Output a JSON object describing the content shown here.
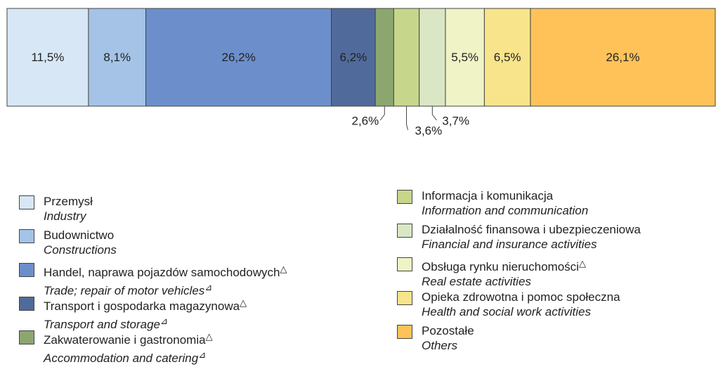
{
  "chart_data": {
    "type": "bar",
    "orientation": "horizontal",
    "stacked": true,
    "xlim": [
      0,
      100
    ],
    "series": [
      {
        "name": "Przemysł",
        "name_en": "Industry",
        "color": "#d7e7f6",
        "values": [
          11.5
        ],
        "value_labels": [
          "11,5%"
        ]
      },
      {
        "name": "Budownictwo",
        "name_en": "Constructions",
        "color": "#a4c3e7",
        "values": [
          8.1
        ],
        "value_labels": [
          "8,1%"
        ]
      },
      {
        "name": "Handel, naprawa pojazdów samochodowych",
        "name_en": "Trade; repair of motor vehicles",
        "mark": "△",
        "mark_en": "⊿",
        "color": "#6c8fcc",
        "values": [
          26.2
        ],
        "value_labels": [
          "26,2%"
        ]
      },
      {
        "name": "Transport i gospodarka magazynowa",
        "name_en": "Transport and storage",
        "mark": "△",
        "mark_en": "⊿",
        "color": "#506b9b",
        "values": [
          6.2
        ],
        "value_labels": [
          "6,2%"
        ]
      },
      {
        "name": "Zakwaterowanie i gastronomia",
        "name_en": "Accommodation and catering",
        "mark": "△",
        "mark_en": "⊿",
        "color": "#8ba76f",
        "values": [
          2.6
        ],
        "value_labels": [
          "2,6%"
        ]
      },
      {
        "name": "Informacja i komunikacja",
        "name_en": "Information and communication",
        "color": "#c6d78b",
        "values": [
          3.6
        ],
        "value_labels": [
          "3,6%"
        ]
      },
      {
        "name": "Działalność finansowa i ubezpieczeniowa",
        "name_en": "Financial and insurance activities",
        "color": "#d9e7c5",
        "values": [
          3.7
        ],
        "value_labels": [
          "3,7%"
        ]
      },
      {
        "name": "Obsługa rynku nieruchomości",
        "name_en": "Real estate activities",
        "mark": "△",
        "color": "#eff3c6",
        "values": [
          5.5
        ],
        "value_labels": [
          "5,5%"
        ]
      },
      {
        "name": "Opieka zdrowotna i pomoc społeczna",
        "name_en": "Health and social work activities",
        "color": "#f8e48b",
        "values": [
          6.5
        ],
        "value_labels": [
          "6,5%"
        ]
      },
      {
        "name": "Pozostałe",
        "name_en": "Others",
        "color": "#fec259",
        "values": [
          26.1
        ],
        "value_labels": [
          "26,1%"
        ]
      }
    ]
  }
}
